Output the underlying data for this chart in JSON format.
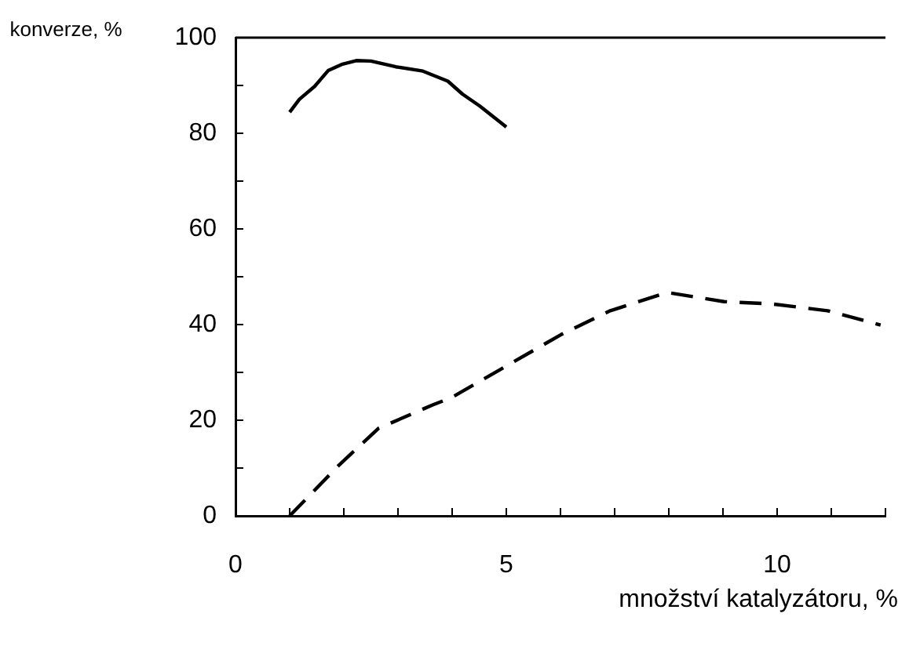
{
  "chart_data": {
    "type": "line",
    "xlabel": "množství katalyzátoru, %",
    "ylabel": "konverze, %",
    "xlim": [
      0,
      12
    ],
    "xticks": [
      0,
      {
        "value": 1,
        "label": null
      },
      {
        "value": 2,
        "label": null
      },
      {
        "value": 3,
        "label": null
      },
      {
        "value": 4,
        "label": null
      },
      5,
      {
        "value": 6,
        "label": null
      },
      {
        "value": 7,
        "label": null
      },
      {
        "value": 8,
        "label": null
      },
      {
        "value": 9,
        "label": null
      },
      10,
      {
        "value": 11,
        "label": null
      },
      {
        "value": 12,
        "label": null
      }
    ],
    "ylim": [
      0,
      100
    ],
    "yticks": [
      0,
      {
        "value": 10,
        "label": null
      },
      20,
      {
        "value": 30,
        "label": null
      },
      40,
      {
        "value": 50,
        "label": null
      },
      60,
      {
        "value": 70,
        "label": null
      },
      80,
      {
        "value": 90,
        "label": null
      },
      100
    ],
    "marker": "none",
    "legend": false,
    "series": [
      {
        "color": "#000000",
        "line_style": "solid",
        "x": [
          1,
          1.18,
          1.46,
          1.71,
          1.96,
          2.23,
          2.5,
          2.96,
          3.46,
          3.92,
          4.19,
          4.51,
          5
        ],
        "values": [
          84.4,
          87.1,
          89.8,
          93.1,
          94.4,
          95.2,
          95.1,
          93.9,
          93,
          90.9,
          88.2,
          85.7,
          81.3
        ]
      },
      {
        "color": "#000000",
        "line_style": "dashed",
        "x": [
          1,
          1.91,
          2.64,
          3.64,
          4,
          4.92,
          6.01,
          6.92,
          7.97,
          9.02,
          9.92,
          10.93,
          11.91
        ],
        "values": [
          0,
          10.6,
          18.3,
          23.2,
          24.8,
          30.8,
          37.9,
          42.9,
          46.7,
          44.8,
          44.3,
          42.9,
          39.9
        ]
      }
    ]
  }
}
